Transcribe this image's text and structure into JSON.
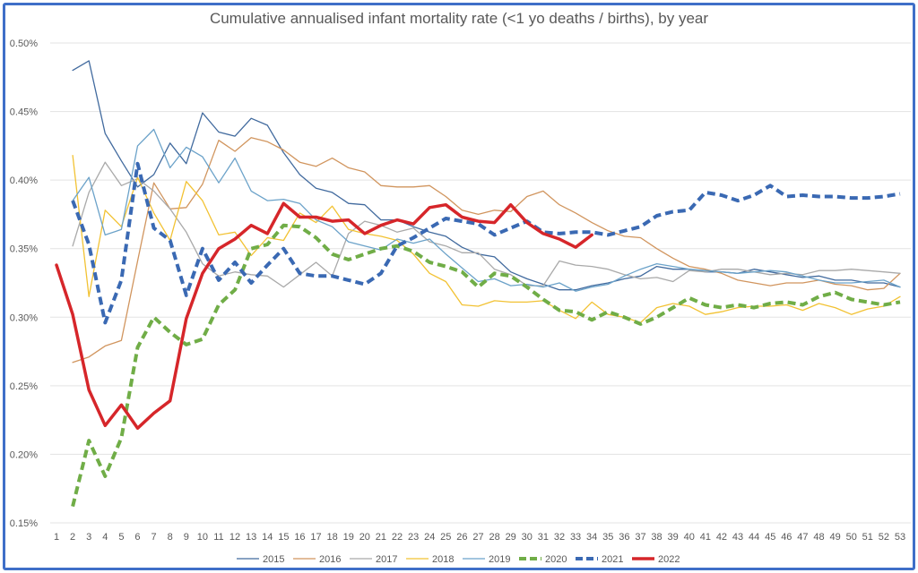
{
  "chart_data": {
    "type": "line",
    "title": "Cumulative annualised infant mortality rate (<1 yo deaths / births), by year",
    "xlabel": "",
    "ylabel": "",
    "xlim": [
      1,
      53
    ],
    "ylim": [
      0.15,
      0.5
    ],
    "x_ticks": [
      1,
      2,
      3,
      4,
      5,
      6,
      7,
      8,
      9,
      10,
      11,
      12,
      13,
      14,
      15,
      16,
      17,
      18,
      19,
      20,
      21,
      22,
      23,
      24,
      25,
      26,
      27,
      28,
      29,
      30,
      31,
      32,
      33,
      34,
      35,
      36,
      37,
      38,
      39,
      40,
      41,
      42,
      43,
      44,
      45,
      46,
      47,
      48,
      49,
      50,
      51,
      52,
      53
    ],
    "y_ticks": [
      {
        "value": 0.15,
        "label": "0.15%"
      },
      {
        "value": 0.2,
        "label": "0.20%"
      },
      {
        "value": 0.25,
        "label": "0.25%"
      },
      {
        "value": 0.3,
        "label": "0.30%"
      },
      {
        "value": 0.35,
        "label": "0.35%"
      },
      {
        "value": 0.4,
        "label": "0.40%"
      },
      {
        "value": 0.45,
        "label": "0.45%"
      },
      {
        "value": 0.5,
        "label": "0.50%"
      }
    ],
    "grid": true,
    "legend_position": "bottom",
    "series": [
      {
        "name": "2015",
        "color": "#416a9e",
        "width": 1.3,
        "dashed": false,
        "start_x": 2,
        "values": [
          0.48,
          0.487,
          0.434,
          0.414,
          0.395,
          0.404,
          0.427,
          0.412,
          0.449,
          0.435,
          0.432,
          0.445,
          0.44,
          0.42,
          0.404,
          0.394,
          0.391,
          0.383,
          0.382,
          0.371,
          0.371,
          0.366,
          0.362,
          0.359,
          0.351,
          0.346,
          0.344,
          0.333,
          0.328,
          0.324,
          0.32,
          0.32,
          0.323,
          0.325,
          0.328,
          0.33,
          0.337,
          0.335,
          0.335,
          0.333,
          0.333,
          0.332,
          0.335,
          0.333,
          0.331,
          0.329,
          0.33,
          0.327,
          0.327,
          0.325,
          0.325,
          0.322
        ]
      },
      {
        "name": "2016",
        "color": "#d1955e",
        "width": 1.3,
        "dashed": false,
        "start_x": 2,
        "values": [
          0.267,
          0.271,
          0.279,
          0.283,
          0.341,
          0.398,
          0.379,
          0.38,
          0.397,
          0.429,
          0.421,
          0.431,
          0.428,
          0.422,
          0.413,
          0.41,
          0.416,
          0.409,
          0.406,
          0.396,
          0.395,
          0.395,
          0.396,
          0.388,
          0.378,
          0.375,
          0.378,
          0.377,
          0.388,
          0.392,
          0.382,
          0.376,
          0.369,
          0.363,
          0.359,
          0.358,
          0.35,
          0.343,
          0.337,
          0.335,
          0.332,
          0.327,
          0.325,
          0.323,
          0.325,
          0.325,
          0.327,
          0.324,
          0.323,
          0.32,
          0.321,
          0.332
        ]
      },
      {
        "name": "2017",
        "color": "#a9a9a9",
        "width": 1.3,
        "dashed": false,
        "start_x": 2,
        "values": [
          0.352,
          0.391,
          0.413,
          0.396,
          0.401,
          0.392,
          0.379,
          0.362,
          0.339,
          0.33,
          0.333,
          0.331,
          0.33,
          0.322,
          0.331,
          0.34,
          0.33,
          0.361,
          0.37,
          0.367,
          0.362,
          0.365,
          0.355,
          0.352,
          0.347,
          0.347,
          0.335,
          0.331,
          0.323,
          0.323,
          0.341,
          0.338,
          0.337,
          0.335,
          0.331,
          0.328,
          0.329,
          0.326,
          0.334,
          0.333,
          0.335,
          0.335,
          0.333,
          0.331,
          0.332,
          0.331,
          0.334,
          0.334,
          0.335,
          0.334,
          0.333,
          0.332
        ]
      },
      {
        "name": "2018",
        "color": "#f2c233",
        "width": 1.3,
        "dashed": false,
        "start_x": 2,
        "values": [
          0.418,
          0.315,
          0.378,
          0.366,
          0.402,
          0.376,
          0.356,
          0.399,
          0.385,
          0.36,
          0.362,
          0.345,
          0.358,
          0.356,
          0.376,
          0.369,
          0.381,
          0.364,
          0.361,
          0.359,
          0.356,
          0.346,
          0.332,
          0.326,
          0.309,
          0.308,
          0.312,
          0.311,
          0.311,
          0.312,
          0.305,
          0.299,
          0.311,
          0.302,
          0.3,
          0.296,
          0.307,
          0.31,
          0.308,
          0.302,
          0.304,
          0.307,
          0.308,
          0.308,
          0.309,
          0.305,
          0.31,
          0.307,
          0.302,
          0.306,
          0.308,
          0.315
        ]
      },
      {
        "name": "2019",
        "color": "#6ba2c9",
        "width": 1.3,
        "dashed": false,
        "start_x": 2,
        "values": [
          0.385,
          0.402,
          0.36,
          0.364,
          0.425,
          0.437,
          0.409,
          0.424,
          0.417,
          0.398,
          0.416,
          0.392,
          0.385,
          0.386,
          0.383,
          0.371,
          0.366,
          0.355,
          0.352,
          0.349,
          0.357,
          0.354,
          0.357,
          0.346,
          0.336,
          0.326,
          0.328,
          0.323,
          0.324,
          0.322,
          0.325,
          0.319,
          0.322,
          0.324,
          0.33,
          0.335,
          0.339,
          0.337,
          0.335,
          0.334,
          0.333,
          0.332,
          0.333,
          0.334,
          0.333,
          0.33,
          0.327,
          0.325,
          0.325,
          0.326,
          0.327,
          0.322
        ]
      },
      {
        "name": "2020",
        "color": "#70ad47",
        "width": 4,
        "dashed": true,
        "start_x": 2,
        "values": [
          0.162,
          0.21,
          0.184,
          0.212,
          0.278,
          0.3,
          0.289,
          0.28,
          0.284,
          0.309,
          0.32,
          0.35,
          0.353,
          0.367,
          0.366,
          0.358,
          0.346,
          0.342,
          0.346,
          0.35,
          0.352,
          0.348,
          0.34,
          0.337,
          0.333,
          0.322,
          0.332,
          0.33,
          0.322,
          0.313,
          0.305,
          0.304,
          0.298,
          0.304,
          0.3,
          0.295,
          0.3,
          0.307,
          0.314,
          0.309,
          0.307,
          0.309,
          0.307,
          0.31,
          0.311,
          0.309,
          0.315,
          0.318,
          0.313,
          0.311,
          0.309,
          0.311
        ]
      },
      {
        "name": "2021",
        "color": "#3a69b3",
        "width": 4,
        "dashed": true,
        "start_x": 2,
        "values": [
          0.385,
          0.353,
          0.296,
          0.327,
          0.412,
          0.365,
          0.356,
          0.316,
          0.35,
          0.327,
          0.34,
          0.325,
          0.338,
          0.35,
          0.332,
          0.33,
          0.33,
          0.327,
          0.324,
          0.332,
          0.352,
          0.358,
          0.365,
          0.372,
          0.37,
          0.368,
          0.36,
          0.365,
          0.37,
          0.362,
          0.361,
          0.362,
          0.362,
          0.36,
          0.363,
          0.366,
          0.374,
          0.377,
          0.378,
          0.391,
          0.389,
          0.385,
          0.389,
          0.396,
          0.388,
          0.389,
          0.388,
          0.388,
          0.387,
          0.387,
          0.388,
          0.39
        ]
      },
      {
        "name": "2022",
        "color": "#d6262a",
        "width": 3.5,
        "dashed": false,
        "start_x": 1,
        "values": [
          0.338,
          0.302,
          0.247,
          0.221,
          0.236,
          0.219,
          0.23,
          0.239,
          0.299,
          0.332,
          0.35,
          0.357,
          0.367,
          0.361,
          0.383,
          0.373,
          0.373,
          0.37,
          0.371,
          0.361,
          0.367,
          0.371,
          0.368,
          0.38,
          0.382,
          0.373,
          0.37,
          0.369,
          0.382,
          0.369,
          0.361,
          0.357,
          0.351,
          0.36
        ]
      }
    ]
  }
}
